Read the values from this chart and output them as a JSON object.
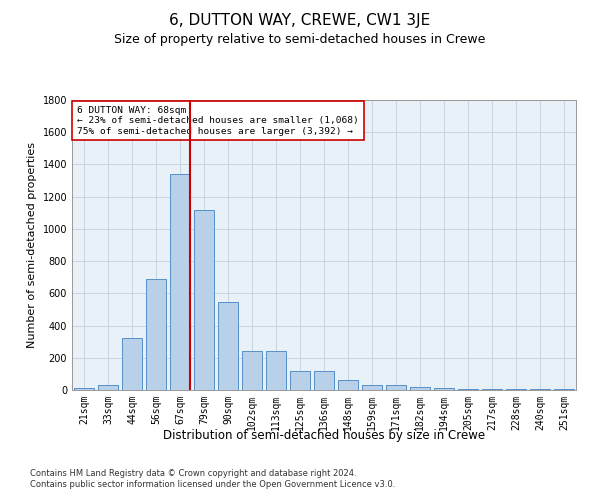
{
  "title": "6, DUTTON WAY, CREWE, CW1 3JE",
  "subtitle": "Size of property relative to semi-detached houses in Crewe",
  "xlabel": "Distribution of semi-detached houses by size in Crewe",
  "ylabel": "Number of semi-detached properties",
  "categories": [
    "21sqm",
    "33sqm",
    "44sqm",
    "56sqm",
    "67sqm",
    "79sqm",
    "90sqm",
    "102sqm",
    "113sqm",
    "125sqm",
    "136sqm",
    "148sqm",
    "159sqm",
    "171sqm",
    "182sqm",
    "194sqm",
    "205sqm",
    "217sqm",
    "228sqm",
    "240sqm",
    "251sqm"
  ],
  "values": [
    10,
    30,
    325,
    690,
    1340,
    1120,
    545,
    240,
    240,
    115,
    115,
    60,
    30,
    30,
    20,
    12,
    5,
    5,
    5,
    5,
    5
  ],
  "bar_color": "#b8d0e8",
  "bar_edge_color": "#5590c8",
  "property_line_color": "#cc0000",
  "annotation_text": "6 DUTTON WAY: 68sqm\n← 23% of semi-detached houses are smaller (1,068)\n75% of semi-detached houses are larger (3,392) →",
  "annotation_box_color": "#ffffff",
  "annotation_box_edge": "#cc0000",
  "ylim": [
    0,
    1800
  ],
  "yticks": [
    0,
    200,
    400,
    600,
    800,
    1000,
    1200,
    1400,
    1600,
    1800
  ],
  "footnote1": "Contains HM Land Registry data © Crown copyright and database right 2024.",
  "footnote2": "Contains public sector information licensed under the Open Government Licence v3.0.",
  "background_color": "#ffffff",
  "plot_bg_color": "#e8f0f8",
  "grid_color": "#c8d4e0",
  "title_fontsize": 11,
  "subtitle_fontsize": 9,
  "axis_label_fontsize": 8,
  "tick_fontsize": 7,
  "footnote_fontsize": 6
}
